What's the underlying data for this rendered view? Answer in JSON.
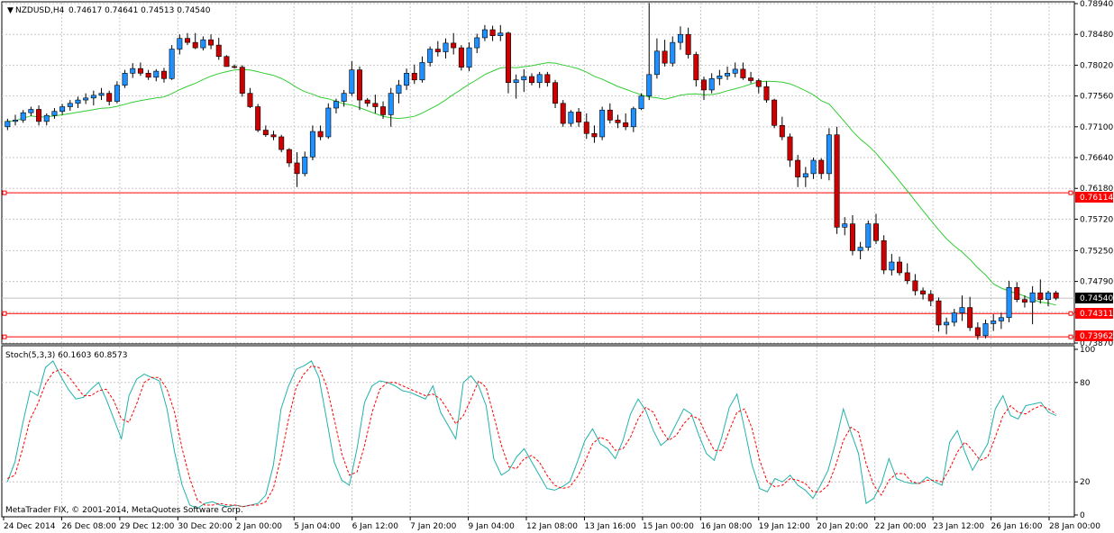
{
  "header": {
    "symbol": "NZDUSD,H4",
    "ohlc": "0.74617 0.74641 0.74513 0.74540"
  },
  "indicator": {
    "label": "Stoch(5,3,3) 60.1603 60.8573",
    "levels": [
      "100",
      "80",
      "20",
      "0"
    ]
  },
  "copyright": "MetaTrader FIX, © 2001-2014, MetaQuotes Software Corp.",
  "price_axis": [
    "0.78940",
    "0.78480",
    "0.78020",
    "0.77560",
    "0.77100",
    "0.76640",
    "0.76180",
    "0.75720",
    "0.75250",
    "0.74790",
    "0.74330",
    "0.73870"
  ],
  "badges": {
    "hline1": "0.76114",
    "current": "0.74540",
    "hline2": "0.74311",
    "hline3": "0.73962"
  },
  "time_axis": [
    "24 Dec 2014",
    "26 Dec 08:00",
    "29 Dec 12:00",
    "30 Dec 20:00",
    "2 Jan 00:00",
    "5 Jan 04:00",
    "6 Jan 12:00",
    "7 Jan 20:00",
    "9 Jan 04:00",
    "12 Jan 08:00",
    "13 Jan 16:00",
    "15 Jan 00:00",
    "16 Jan 08:00",
    "19 Jan 12:00",
    "20 Jan 20:00",
    "22 Jan 00:00",
    "23 Jan 12:00",
    "26 Jan 16:00",
    "28 Jan 00:00"
  ],
  "colors": {
    "bull": "#1e90ff",
    "bear": "#cc0000",
    "ma": "#33cc33",
    "stoch_main": "#20b2aa",
    "stoch_signal": "#ff0000",
    "hline": "#ff0000",
    "current_badge": "#000000"
  },
  "chart_data": [
    {
      "type": "candlestick",
      "title": "NZDUSD,H4",
      "ylim": [
        0.7387,
        0.7894
      ],
      "hlines": [
        0.76114,
        0.74311,
        0.73962
      ],
      "current_price": 0.7454,
      "candles": [
        [
          0.771,
          0.7722,
          0.7705,
          0.7718
        ],
        [
          0.7718,
          0.7728,
          0.7712,
          0.772
        ],
        [
          0.772,
          0.7735,
          0.7716,
          0.7731
        ],
        [
          0.7731,
          0.774,
          0.7726,
          0.7736
        ],
        [
          0.7736,
          0.7742,
          0.7712,
          0.7718
        ],
        [
          0.7718,
          0.773,
          0.7712,
          0.7727
        ],
        [
          0.7727,
          0.7738,
          0.7722,
          0.7733
        ],
        [
          0.7733,
          0.7744,
          0.7728,
          0.774
        ],
        [
          0.774,
          0.775,
          0.7734,
          0.7745
        ],
        [
          0.7745,
          0.7755,
          0.7738,
          0.775
        ],
        [
          0.775,
          0.776,
          0.7744,
          0.7753
        ],
        [
          0.7753,
          0.7764,
          0.7742,
          0.7757
        ],
        [
          0.7757,
          0.7768,
          0.775,
          0.776
        ],
        [
          0.776,
          0.7764,
          0.7742,
          0.7748
        ],
        [
          0.7748,
          0.7778,
          0.7745,
          0.7772
        ],
        [
          0.7772,
          0.7795,
          0.7768,
          0.779
        ],
        [
          0.779,
          0.7805,
          0.7783,
          0.7797
        ],
        [
          0.7797,
          0.7806,
          0.7786,
          0.779
        ],
        [
          0.779,
          0.7795,
          0.778,
          0.7784
        ],
        [
          0.7784,
          0.7796,
          0.7778,
          0.7793
        ],
        [
          0.7793,
          0.7798,
          0.7776,
          0.7782
        ],
        [
          0.7782,
          0.7832,
          0.778,
          0.7826
        ],
        [
          0.7826,
          0.7848,
          0.7818,
          0.7842
        ],
        [
          0.7842,
          0.785,
          0.7832,
          0.7836
        ],
        [
          0.7836,
          0.785,
          0.7826,
          0.7828
        ],
        [
          0.7828,
          0.7845,
          0.7824,
          0.784
        ],
        [
          0.784,
          0.7848,
          0.7826,
          0.7832
        ],
        [
          0.7832,
          0.7843,
          0.781,
          0.7815
        ],
        [
          0.7815,
          0.7817,
          0.78,
          0.78
        ],
        [
          0.78,
          0.7803,
          0.7797,
          0.7799
        ],
        [
          0.7799,
          0.7802,
          0.7755,
          0.776
        ],
        [
          0.776,
          0.7768,
          0.7738,
          0.774
        ],
        [
          0.774,
          0.7744,
          0.7702,
          0.7705
        ],
        [
          0.7705,
          0.7712,
          0.7695,
          0.7698
        ],
        [
          0.7698,
          0.7704,
          0.769,
          0.7695
        ],
        [
          0.7695,
          0.7698,
          0.7672,
          0.7676
        ],
        [
          0.7676,
          0.7678,
          0.765,
          0.7656
        ],
        [
          0.7656,
          0.7672,
          0.762,
          0.764
        ],
        [
          0.764,
          0.7673,
          0.7636,
          0.7665
        ],
        [
          0.7665,
          0.7712,
          0.766,
          0.7703
        ],
        [
          0.7703,
          0.7712,
          0.769,
          0.7695
        ],
        [
          0.7695,
          0.7745,
          0.7692,
          0.7738
        ],
        [
          0.7738,
          0.7752,
          0.773,
          0.7748
        ],
        [
          0.7748,
          0.7765,
          0.774,
          0.776
        ],
        [
          0.776,
          0.7808,
          0.7756,
          0.7795
        ],
        [
          0.7795,
          0.78,
          0.7735,
          0.775
        ],
        [
          0.775,
          0.7753,
          0.774,
          0.7745
        ],
        [
          0.7745,
          0.7758,
          0.773,
          0.774
        ],
        [
          0.774,
          0.7748,
          0.7722,
          0.7728
        ],
        [
          0.7728,
          0.7768,
          0.771,
          0.776
        ],
        [
          0.776,
          0.778,
          0.7745,
          0.7772
        ],
        [
          0.7772,
          0.7797,
          0.7765,
          0.779
        ],
        [
          0.779,
          0.7803,
          0.7774,
          0.778
        ],
        [
          0.778,
          0.7815,
          0.7776,
          0.7806
        ],
        [
          0.7806,
          0.783,
          0.78,
          0.7826
        ],
        [
          0.7826,
          0.7838,
          0.7815,
          0.7822
        ],
        [
          0.7822,
          0.7842,
          0.7812,
          0.7835
        ],
        [
          0.7835,
          0.785,
          0.7818,
          0.7828
        ],
        [
          0.7828,
          0.7832,
          0.7794,
          0.7799
        ],
        [
          0.7799,
          0.7836,
          0.7793,
          0.7828
        ],
        [
          0.7828,
          0.7849,
          0.782,
          0.7843
        ],
        [
          0.7843,
          0.7862,
          0.7838,
          0.7855
        ],
        [
          0.7855,
          0.7861,
          0.7838,
          0.7846
        ],
        [
          0.7846,
          0.7862,
          0.7838,
          0.785
        ],
        [
          0.785,
          0.7852,
          0.776,
          0.7776
        ],
        [
          0.7776,
          0.7788,
          0.7752,
          0.778
        ],
        [
          0.778,
          0.7796,
          0.7762,
          0.7785
        ],
        [
          0.7785,
          0.779,
          0.7772,
          0.7776
        ],
        [
          0.7776,
          0.7792,
          0.7768,
          0.7788
        ],
        [
          0.7788,
          0.7792,
          0.777,
          0.7776
        ],
        [
          0.7776,
          0.778,
          0.7738,
          0.7745
        ],
        [
          0.7745,
          0.775,
          0.771,
          0.7715
        ],
        [
          0.7715,
          0.7735,
          0.771,
          0.7732
        ],
        [
          0.7732,
          0.7738,
          0.771,
          0.7717
        ],
        [
          0.7717,
          0.773,
          0.7692,
          0.77
        ],
        [
          0.77,
          0.7712,
          0.7686,
          0.7695
        ],
        [
          0.7695,
          0.774,
          0.769,
          0.7735
        ],
        [
          0.7735,
          0.7745,
          0.7715,
          0.772
        ],
        [
          0.772,
          0.7728,
          0.7708,
          0.7716
        ],
        [
          0.7716,
          0.773,
          0.7705,
          0.771
        ],
        [
          0.771,
          0.774,
          0.7702,
          0.7737
        ],
        [
          0.7737,
          0.776,
          0.7735,
          0.7756
        ],
        [
          0.7756,
          0.7895,
          0.775,
          0.7788
        ],
        [
          0.7788,
          0.7842,
          0.7782,
          0.7823
        ],
        [
          0.7823,
          0.784,
          0.78,
          0.7805
        ],
        [
          0.7805,
          0.7845,
          0.78,
          0.7836
        ],
        [
          0.7836,
          0.786,
          0.7825,
          0.7848
        ],
        [
          0.7848,
          0.7858,
          0.7812,
          0.7818
        ],
        [
          0.7818,
          0.7822,
          0.777,
          0.778
        ],
        [
          0.778,
          0.7785,
          0.775,
          0.7765
        ],
        [
          0.7765,
          0.779,
          0.776,
          0.7782
        ],
        [
          0.7782,
          0.7795,
          0.7772,
          0.7786
        ],
        [
          0.7786,
          0.78,
          0.778,
          0.779
        ],
        [
          0.779,
          0.7806,
          0.7784,
          0.7796
        ],
        [
          0.7796,
          0.7806,
          0.778,
          0.7783
        ],
        [
          0.7783,
          0.7792,
          0.7775,
          0.7779
        ],
        [
          0.7779,
          0.7782,
          0.776,
          0.777
        ],
        [
          0.777,
          0.7778,
          0.7746,
          0.775
        ],
        [
          0.775,
          0.7752,
          0.7708,
          0.7712
        ],
        [
          0.7712,
          0.7725,
          0.769,
          0.7695
        ],
        [
          0.7695,
          0.77,
          0.765,
          0.766
        ],
        [
          0.766,
          0.7668,
          0.762,
          0.7635
        ],
        [
          0.7635,
          0.765,
          0.762,
          0.764
        ],
        [
          0.764,
          0.7664,
          0.7632,
          0.766
        ],
        [
          0.766,
          0.7663,
          0.7632,
          0.764
        ],
        [
          0.764,
          0.7708,
          0.763,
          0.7698
        ],
        [
          0.7698,
          0.771,
          0.755,
          0.756
        ],
        [
          0.756,
          0.7575,
          0.7548,
          0.7565
        ],
        [
          0.7565,
          0.7578,
          0.7518,
          0.7525
        ],
        [
          0.7525,
          0.7538,
          0.7512,
          0.753
        ],
        [
          0.753,
          0.757,
          0.7525,
          0.7565
        ],
        [
          0.7565,
          0.758,
          0.7535,
          0.754
        ],
        [
          0.754,
          0.7548,
          0.749,
          0.7496
        ],
        [
          0.7496,
          0.752,
          0.7488,
          0.7508
        ],
        [
          0.7508,
          0.7516,
          0.7488,
          0.7492
        ],
        [
          0.7492,
          0.7506,
          0.7475,
          0.748
        ],
        [
          0.748,
          0.749,
          0.7458,
          0.7465
        ],
        [
          0.7465,
          0.747,
          0.7452,
          0.746
        ],
        [
          0.746,
          0.7466,
          0.7442,
          0.745
        ],
        [
          0.745,
          0.7455,
          0.7404,
          0.7414
        ],
        [
          0.7414,
          0.7425,
          0.74,
          0.7418
        ],
        [
          0.7418,
          0.7438,
          0.7412,
          0.7432
        ],
        [
          0.7432,
          0.7458,
          0.742,
          0.744
        ],
        [
          0.744,
          0.7456,
          0.7405,
          0.741
        ],
        [
          0.741,
          0.7418,
          0.7392,
          0.7398
        ],
        [
          0.7398,
          0.7422,
          0.7394,
          0.7416
        ],
        [
          0.7416,
          0.743,
          0.7405,
          0.742
        ],
        [
          0.742,
          0.7432,
          0.7408,
          0.7425
        ],
        [
          0.7425,
          0.748,
          0.7418,
          0.747
        ],
        [
          0.747,
          0.7478,
          0.7448,
          0.7452
        ],
        [
          0.7452,
          0.7458,
          0.744,
          0.7448
        ],
        [
          0.7448,
          0.7472,
          0.7415,
          0.7462
        ],
        [
          0.7462,
          0.7482,
          0.7446,
          0.7452
        ],
        [
          0.7452,
          0.7465,
          0.7442,
          0.7462
        ],
        [
          0.7462,
          0.7465,
          0.7451,
          0.7454
        ]
      ]
    },
    {
      "type": "line",
      "title": "Stoch(5,3,3) 60.1603 60.8573",
      "ylim": [
        0,
        100
      ],
      "levels": [
        80,
        20
      ],
      "series": [
        {
          "values": [
            20,
            32,
            55,
            75,
            72,
            89,
            93,
            84,
            76,
            70,
            71,
            76,
            80,
            70,
            58,
            46,
            72,
            82,
            85,
            83,
            81,
            64,
            38,
            18,
            6,
            4,
            7,
            8,
            6,
            5,
            6,
            5,
            6,
            7,
            12,
            30,
            64,
            78,
            88,
            90,
            93,
            83,
            58,
            32,
            21,
            18,
            40,
            68,
            78,
            81,
            80,
            78,
            75,
            74,
            72,
            70,
            78,
            62,
            54,
            46,
            80,
            84,
            78,
            66,
            34,
            24,
            27,
            35,
            40,
            32,
            24,
            16,
            15,
            17,
            20,
            32,
            45,
            52,
            43,
            40,
            34,
            45,
            61,
            70,
            63,
            51,
            42,
            46,
            55,
            64,
            61,
            48,
            37,
            33,
            47,
            65,
            73,
            52,
            30,
            16,
            14,
            22,
            20,
            24,
            18,
            15,
            10,
            18,
            27,
            44,
            64,
            50,
            37,
            7,
            10,
            19,
            34,
            22,
            20,
            19,
            19,
            23,
            20,
            18,
            44,
            51,
            38,
            27,
            35,
            43,
            64,
            72,
            60,
            58,
            66,
            67,
            68,
            62,
            60
          ]
        },
        {
          "values": [
            22,
            24,
            40,
            58,
            67,
            79,
            86,
            88,
            84,
            78,
            72,
            72,
            75,
            76,
            69,
            58,
            56,
            67,
            80,
            83,
            83,
            76,
            62,
            40,
            22,
            9,
            6,
            6,
            7,
            6,
            6,
            5,
            6,
            6,
            8,
            16,
            35,
            58,
            77,
            85,
            90,
            89,
            78,
            58,
            37,
            24,
            26,
            42,
            62,
            76,
            80,
            80,
            78,
            76,
            74,
            72,
            73,
            70,
            63,
            55,
            60,
            70,
            81,
            77,
            60,
            42,
            29,
            28,
            34,
            36,
            32,
            24,
            18,
            16,
            17,
            23,
            32,
            43,
            47,
            45,
            39,
            40,
            47,
            58,
            65,
            62,
            52,
            45,
            48,
            55,
            60,
            58,
            48,
            39,
            39,
            51,
            62,
            64,
            52,
            33,
            20,
            17,
            18,
            22,
            21,
            19,
            14,
            14,
            18,
            30,
            45,
            53,
            50,
            31,
            18,
            12,
            21,
            25,
            25,
            20,
            19,
            21,
            21,
            20,
            28,
            38,
            44,
            39,
            33,
            35,
            47,
            60,
            66,
            62,
            61,
            64,
            66,
            64,
            61
          ]
        }
      ]
    }
  ]
}
